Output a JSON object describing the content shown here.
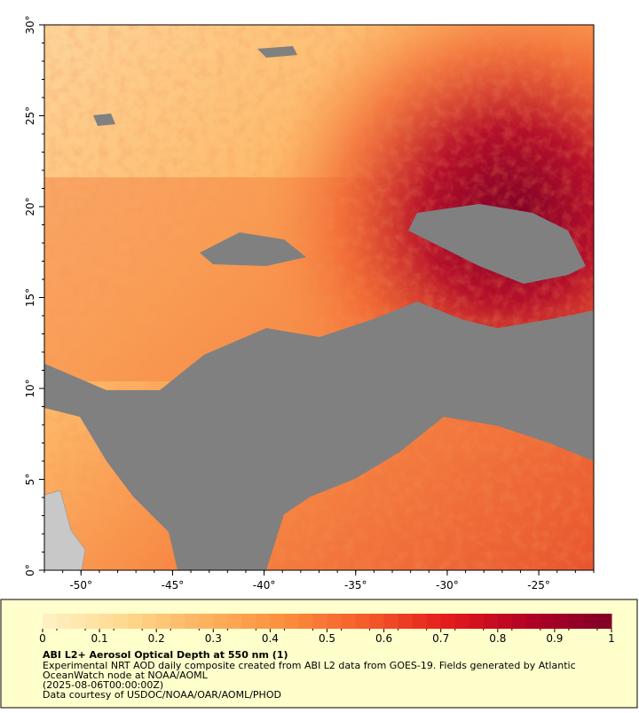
{
  "map": {
    "xlim": [
      -52,
      -22
    ],
    "ylim": [
      0,
      30
    ],
    "xticks": [
      {
        "value": -50,
        "label": "-50°"
      },
      {
        "value": -45,
        "label": "-45°"
      },
      {
        "value": -40,
        "label": "-40°"
      },
      {
        "value": -35,
        "label": "-35°"
      },
      {
        "value": -30,
        "label": "-30°"
      },
      {
        "value": -25,
        "label": "-25°"
      }
    ],
    "yticks": [
      {
        "value": 0,
        "label": "0°"
      },
      {
        "value": 5,
        "label": "5°"
      },
      {
        "value": 10,
        "label": "10°"
      },
      {
        "value": 15,
        "label": "15°"
      },
      {
        "value": 20,
        "label": "20°"
      },
      {
        "value": 25,
        "label": "25°"
      },
      {
        "value": 30,
        "label": "30°"
      }
    ]
  },
  "colorbar": {
    "range": [
      0,
      1
    ],
    "ticks": [
      0,
      0.1,
      0.2,
      0.3,
      0.4,
      0.5,
      0.6,
      0.7,
      0.8,
      0.9,
      1
    ],
    "colors": [
      "#fff2c6",
      "#fed98e",
      "#fdb25e",
      "#fc8d3c",
      "#f45a2a",
      "#e31a1c",
      "#b10026",
      "#800026"
    ]
  },
  "caption": {
    "title": "ABI L2+ Aerosol Optical Depth at 550 nm (1)",
    "lines": [
      "Experimental NRT AOD daily composite created from ABI L2 data from GOES-19. Fields generated by Atlantic",
      "OceanWatch node at NOAA/AOML",
      "(2025-08-06T00:00:00Z)",
      "Data courtesy of USDOC/NOAA/OAR/AOML/PHOD"
    ]
  }
}
